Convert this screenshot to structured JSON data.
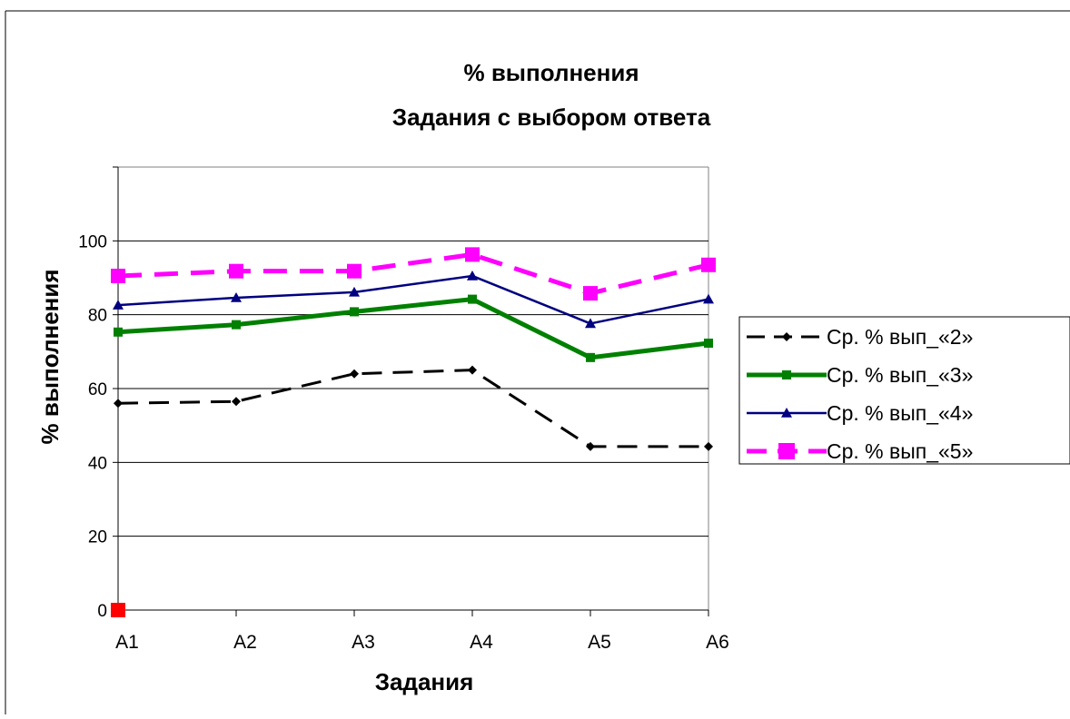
{
  "chart_data": {
    "type": "line",
    "title": "% выполнения",
    "subtitle": "Задания с выбором ответа",
    "xlabel": "Задания",
    "ylabel": "% выполнения",
    "categories": [
      "A1",
      "A2",
      "A3",
      "A4",
      "A5",
      "A6"
    ],
    "ylim": [
      0,
      120
    ],
    "yticks": [
      0,
      20,
      40,
      60,
      80,
      100
    ],
    "grid": true,
    "legend_position": "right",
    "series": [
      {
        "name": "Ср. % вып_«2»",
        "values": [
          56,
          56.5,
          64,
          65,
          44.3,
          44.3
        ],
        "color": "#000000",
        "marker": "diamond",
        "dash": true,
        "width": 3
      },
      {
        "name": "Ср. % вып_«3»",
        "values": [
          75.3,
          77.3,
          80.8,
          84.2,
          68.4,
          72.3
        ],
        "color": "#008000",
        "marker": "square",
        "dash": false,
        "width": 5
      },
      {
        "name": "Ср. % вып_«4»",
        "values": [
          82.6,
          84.6,
          86.1,
          90.5,
          77.6,
          84.2
        ],
        "color": "#000080",
        "marker": "triangle",
        "dash": false,
        "width": 2.5
      },
      {
        "name": "Ср. % вып_«5»",
        "values": [
          90.5,
          91.8,
          91.8,
          96.3,
          85.8,
          93.5
        ],
        "color": "#ff00ff",
        "marker": "square",
        "dash": true,
        "width": 5
      }
    ],
    "extra_point": {
      "category": "A1",
      "value": 0,
      "color": "#ff0000"
    }
  }
}
